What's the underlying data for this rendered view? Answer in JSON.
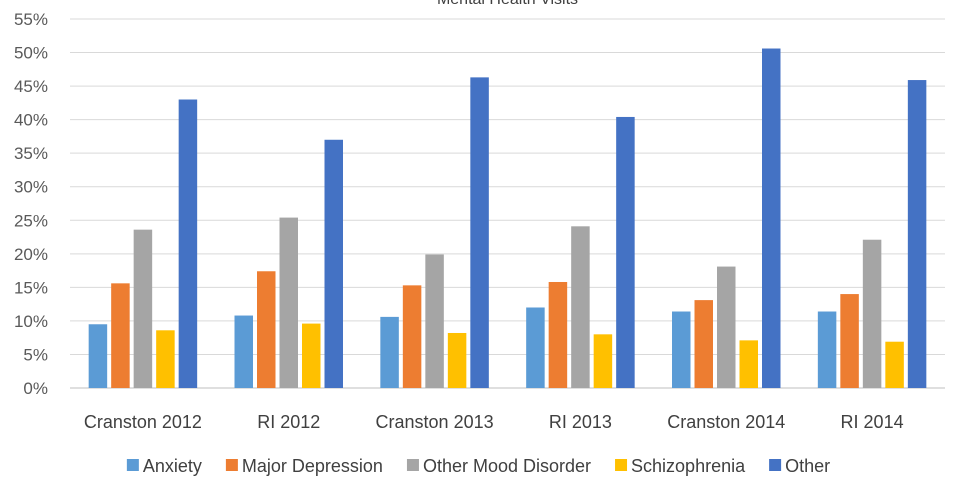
{
  "chart_data": {
    "type": "bar",
    "title": "Mental Health Visits",
    "categories": [
      "Cranston 2012",
      "RI 2012",
      "Cranston 2013",
      "RI 2013",
      "Cranston 2014",
      "RI 2014"
    ],
    "series": [
      {
        "name": "Anxiety",
        "color": "#5B9BD5",
        "values": [
          9.5,
          10.8,
          10.6,
          12.0,
          11.4,
          11.4
        ]
      },
      {
        "name": "Major Depression",
        "color": "#ED7D31",
        "values": [
          15.6,
          17.4,
          15.3,
          15.8,
          13.1,
          14.0
        ]
      },
      {
        "name": "Other Mood Disorder",
        "color": "#A5A5A5",
        "values": [
          23.6,
          25.4,
          19.9,
          24.1,
          18.1,
          22.1
        ]
      },
      {
        "name": "Schizophrenia",
        "color": "#FFC000",
        "values": [
          8.6,
          9.6,
          8.2,
          8.0,
          7.1,
          6.9
        ]
      },
      {
        "name": "Other",
        "color": "#4472C4",
        "values": [
          43.0,
          37.0,
          46.3,
          40.4,
          50.6,
          45.9
        ]
      }
    ],
    "yticks": [
      "0%",
      "5%",
      "10%",
      "15%",
      "20%",
      "25%",
      "30%",
      "35%",
      "40%",
      "45%",
      "50%",
      "55%"
    ],
    "ylim": [
      0,
      55
    ],
    "grid": true,
    "legend_position": "bottom"
  }
}
